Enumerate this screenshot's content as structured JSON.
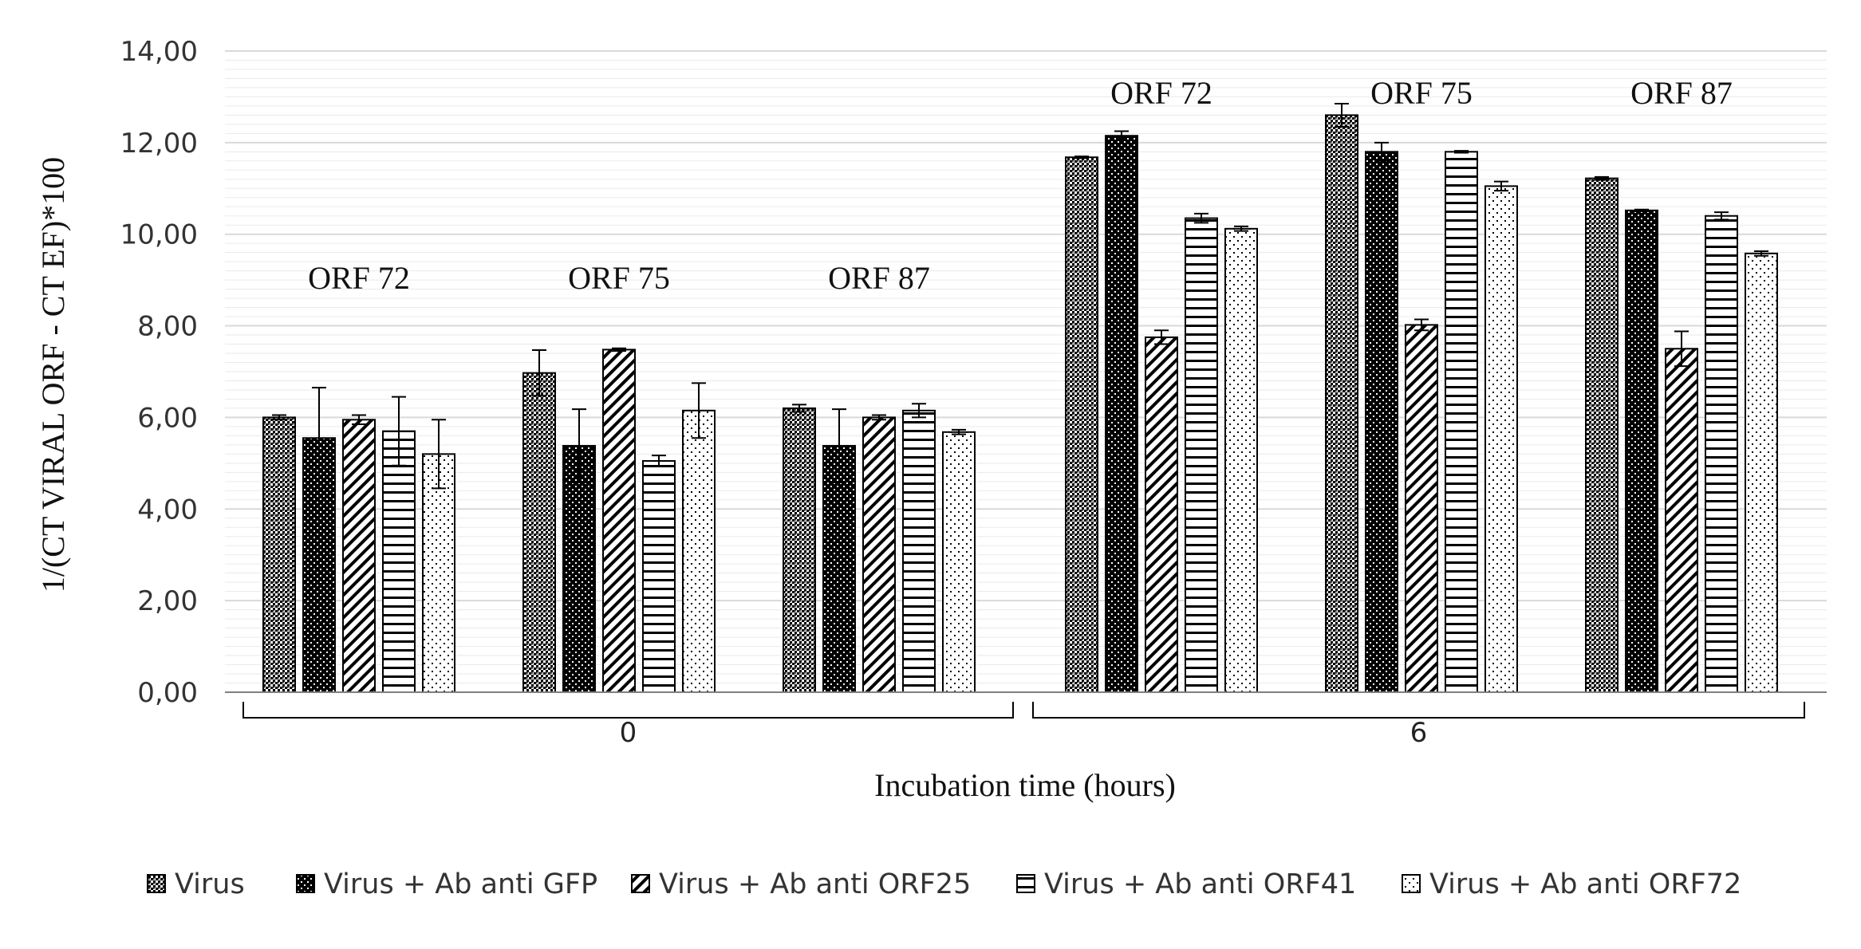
{
  "chart_data": {
    "type": "bar",
    "title": "",
    "xlabel": "Incubation time (hours)",
    "ylabel": "1/(CT VIRAL ORF - CT EF)*100",
    "ylim": [
      0,
      14
    ],
    "ytick_step": 2,
    "ytick_labels": [
      "0,00",
      "2,00",
      "4,00",
      "6,00",
      "8,00",
      "10,00",
      "12,00",
      "14,00"
    ],
    "grid": true,
    "legend_position": "bottom",
    "time_groups": [
      {
        "label": "0",
        "orfs": [
          {
            "label": "ORF 72",
            "values": [
              6.0,
              5.55,
              5.95,
              5.7,
              5.2
            ],
            "errors": [
              0.05,
              1.1,
              0.1,
              0.75,
              0.75
            ]
          },
          {
            "label": "ORF 75",
            "values": [
              6.97,
              5.38,
              7.48,
              5.05,
              6.15
            ],
            "errors": [
              0.5,
              0.8,
              0.03,
              0.12,
              0.6
            ]
          },
          {
            "label": "ORF 87",
            "values": [
              6.2,
              5.38,
              6.0,
              6.15,
              5.68
            ],
            "errors": [
              0.08,
              0.8,
              0.05,
              0.15,
              0.05
            ]
          }
        ]
      },
      {
        "label": "6",
        "orfs": [
          {
            "label": "ORF 72",
            "values": [
              11.68,
              12.15,
              7.75,
              10.35,
              10.12
            ],
            "errors": [
              0.02,
              0.1,
              0.15,
              0.1,
              0.05
            ]
          },
          {
            "label": "ORF 75",
            "values": [
              12.6,
              11.8,
              8.02,
              11.8,
              11.05
            ],
            "errors": [
              0.25,
              0.2,
              0.12,
              0.02,
              0.1
            ]
          },
          {
            "label": "ORF 87",
            "values": [
              11.22,
              10.52,
              7.5,
              10.4,
              9.58
            ],
            "errors": [
              0.03,
              0.02,
              0.38,
              0.08,
              0.05
            ]
          }
        ]
      }
    ],
    "series": [
      {
        "name": "Virus",
        "pattern": "checker-dense"
      },
      {
        "name": "Virus + Ab anti GFP",
        "pattern": "dots-dark"
      },
      {
        "name": "Virus + Ab anti ORF25",
        "pattern": "diagonal"
      },
      {
        "name": "Virus + Ab anti ORF41",
        "pattern": "horizontal"
      },
      {
        "name": "Virus + Ab anti ORF72",
        "pattern": "dots-light"
      }
    ],
    "colors": {
      "ink": "#000000",
      "grid": "#d9d9d9",
      "axis": "#7f7f7f"
    }
  }
}
